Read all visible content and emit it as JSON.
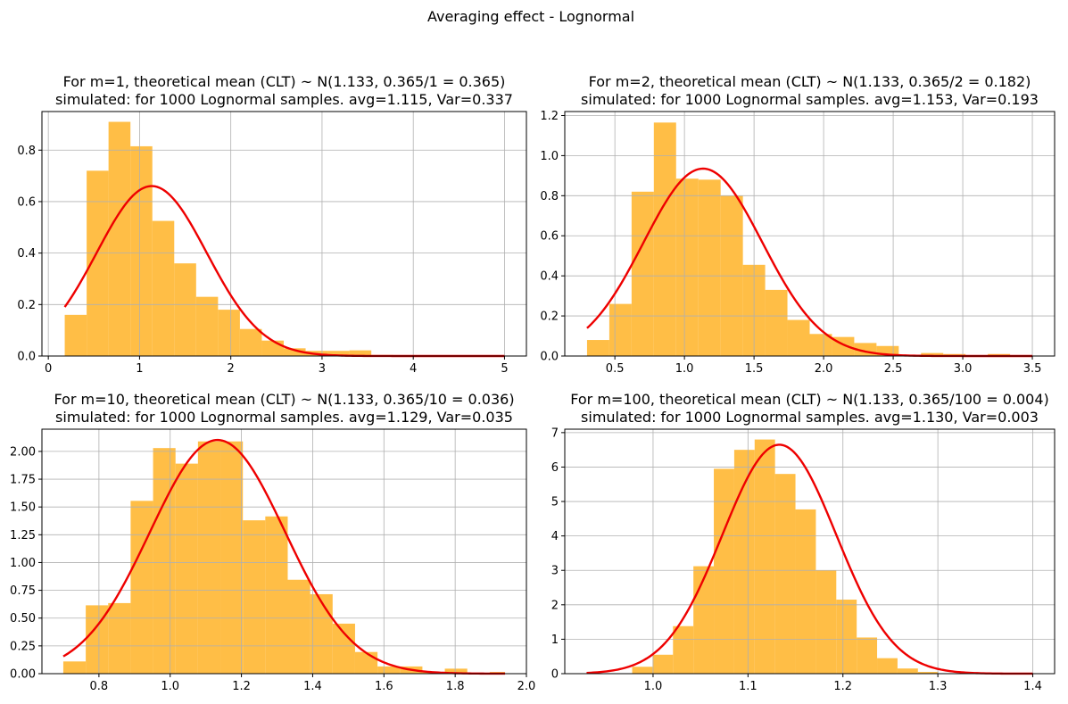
{
  "figure_title": "Averaging effect - Lognormal",
  "colors": {
    "hist": "#FFB732",
    "curve": "#EE0000",
    "grid": "#B0B0B0"
  },
  "chart_data": [
    {
      "type": "bar",
      "title_line1": "For m=1, theoretical mean (CLT) ~ N(1.133, 0.365/1 = 0.365)",
      "title_line2": "simulated: for 1000 Lognormal samples. avg=1.115, Var=0.337",
      "xlim": [
        -0.07,
        5.24
      ],
      "ylim": [
        0,
        0.95
      ],
      "xticks": [
        0,
        1,
        2,
        3,
        4,
        5
      ],
      "xtick_labels": [
        "0",
        "1",
        "2",
        "3",
        "4",
        "5"
      ],
      "yticks": [
        0,
        0.2,
        0.4,
        0.6,
        0.8
      ],
      "ytick_labels": [
        "0.0",
        "0.2",
        "0.4",
        "0.6",
        "0.8"
      ],
      "grid": true,
      "bins": [
        0.18,
        0.42,
        0.66,
        0.9,
        1.14,
        1.38,
        1.62,
        1.86,
        2.1,
        2.34,
        2.58,
        2.82,
        3.06,
        3.3,
        3.54,
        3.78,
        4.02,
        4.26,
        4.5,
        4.74,
        4.98
      ],
      "density": [
        0.16,
        0.72,
        0.91,
        0.815,
        0.525,
        0.36,
        0.23,
        0.18,
        0.105,
        0.06,
        0.03,
        0.02,
        0.02,
        0.022,
        0.004,
        0.0,
        0.0,
        0.0,
        0.0,
        0.0
      ],
      "normal_mean": 1.133,
      "normal_var": 0.365,
      "curve_x": [
        0.18,
        5.0
      ]
    },
    {
      "type": "bar",
      "title_line1": "For m=2, theoretical mean (CLT) ~ N(1.133, 0.365/2 = 0.182)",
      "title_line2": "simulated: for 1000 Lognormal samples. avg=1.153, Var=0.193",
      "xlim": [
        0.14,
        3.66
      ],
      "ylim": [
        0,
        1.22
      ],
      "xticks": [
        0.5,
        1.0,
        1.5,
        2.0,
        2.5,
        3.0,
        3.5
      ],
      "xtick_labels": [
        "0.5",
        "1.0",
        "1.5",
        "2.0",
        "2.5",
        "3.0",
        "3.5"
      ],
      "yticks": [
        0,
        0.2,
        0.4,
        0.6,
        0.8,
        1.0,
        1.2
      ],
      "ytick_labels": [
        "0.0",
        "0.2",
        "0.4",
        "0.6",
        "0.8",
        "1.0",
        "1.2"
      ],
      "grid": true,
      "bins": [
        0.3,
        0.46,
        0.62,
        0.78,
        0.94,
        1.1,
        1.26,
        1.42,
        1.58,
        1.74,
        1.9,
        2.06,
        2.22,
        2.38,
        2.54,
        2.7,
        2.86,
        3.02,
        3.18,
        3.34
      ],
      "density": [
        0.08,
        0.26,
        0.82,
        1.165,
        0.885,
        0.88,
        0.8,
        0.455,
        0.33,
        0.18,
        0.11,
        0.095,
        0.065,
        0.05,
        0.0,
        0.015,
        0.01,
        0.0,
        0.01
      ],
      "normal_mean": 1.133,
      "normal_var": 0.182,
      "curve_x": [
        0.3,
        3.5
      ]
    },
    {
      "type": "bar",
      "title_line1": "For m=10, theoretical mean (CLT) ~ N(1.133, 0.365/10 = 0.036)",
      "title_line2": "simulated: for 1000 Lognormal samples. avg=1.129, Var=0.035",
      "xlim": [
        0.64,
        2.0
      ],
      "ylim": [
        0,
        2.2
      ],
      "xticks": [
        0.8,
        1.0,
        1.2,
        1.4,
        1.6,
        1.8,
        2.0
      ],
      "xtick_labels": [
        "0.8",
        "1.0",
        "1.2",
        "1.4",
        "1.6",
        "1.8",
        "2.0"
      ],
      "yticks": [
        0,
        0.25,
        0.5,
        0.75,
        1.0,
        1.25,
        1.5,
        1.75,
        2.0
      ],
      "ytick_labels": [
        "0.00",
        "0.25",
        "0.50",
        "0.75",
        "1.00",
        "1.25",
        "1.50",
        "1.75",
        "2.00"
      ],
      "grid": true,
      "bins": [
        0.7,
        0.763,
        0.826,
        0.889,
        0.952,
        1.015,
        1.078,
        1.141,
        1.204,
        1.267,
        1.33,
        1.393,
        1.456,
        1.519,
        1.582,
        1.645,
        1.708,
        1.771,
        1.834,
        1.897,
        1.94
      ],
      "density": [
        0.11,
        0.615,
        0.635,
        1.555,
        2.03,
        1.89,
        2.09,
        2.09,
        1.38,
        1.415,
        0.845,
        0.715,
        0.45,
        0.195,
        0.065,
        0.065,
        0.015,
        0.045,
        0.0,
        0.015
      ],
      "normal_mean": 1.133,
      "normal_var": 0.036,
      "curve_x": [
        0.7,
        1.94
      ]
    },
    {
      "type": "bar",
      "title_line1": "For m=100, theoretical mean (CLT) ~ N(1.133, 0.365/100 = 0.004)",
      "title_line2": "simulated: for 1000 Lognormal samples. avg=1.130, Var=0.003",
      "xlim": [
        0.907,
        1.423
      ],
      "ylim": [
        0,
        7.1
      ],
      "xticks": [
        1.0,
        1.1,
        1.2,
        1.3,
        1.4
      ],
      "xtick_labels": [
        "1.0",
        "1.1",
        "1.2",
        "1.3",
        "1.4"
      ],
      "yticks": [
        0,
        1,
        2,
        3,
        4,
        5,
        6,
        7
      ],
      "ytick_labels": [
        "0",
        "1",
        "2",
        "3",
        "4",
        "5",
        "6",
        "7"
      ],
      "grid": true,
      "bins": [
        0.978,
        0.9995,
        1.021,
        1.0425,
        1.064,
        1.0855,
        1.107,
        1.1285,
        1.15,
        1.1715,
        1.193,
        1.2145,
        1.236,
        1.2575,
        1.279,
        1.3005
      ],
      "density": [
        0.2,
        0.55,
        1.38,
        3.12,
        5.95,
        6.5,
        6.8,
        5.8,
        4.77,
        3.0,
        2.15,
        1.05,
        0.45,
        0.15,
        0.05
      ],
      "normal_mean": 1.133,
      "normal_var": 0.0036,
      "curve_x": [
        0.93,
        1.4
      ]
    }
  ]
}
